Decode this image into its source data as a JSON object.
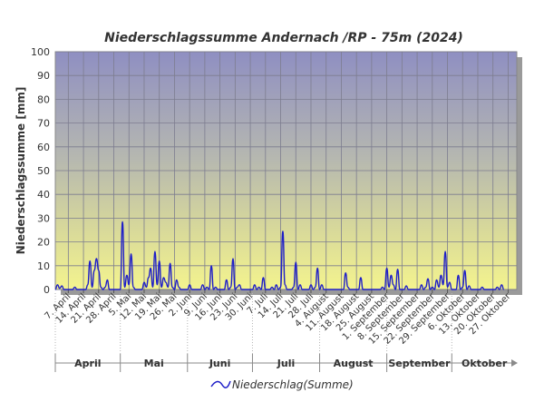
{
  "chart_data": {
    "type": "line",
    "title": "Niederschlagssumme Andernach /RP - 75m (2024)",
    "xlabel": "",
    "ylabel": "Niederschlagssumme [mm]",
    "ylim": [
      0,
      100
    ],
    "yticks": [
      0,
      10,
      20,
      30,
      40,
      50,
      60,
      70,
      80,
      90,
      100
    ],
    "xlim": [
      "2024-04-01",
      "2024-10-31"
    ],
    "xtick_labels": [
      "7. April",
      "14. April",
      "21. April",
      "28. April",
      "5. Mai",
      "12. Mai",
      "19. Mai",
      "26. Mai",
      "2. Juni",
      "9. Juni",
      "16. Juni",
      "23. Juni",
      "30. Juni",
      "7. Juli",
      "14. Juli",
      "21. Juli",
      "28. Juli",
      "4. August",
      "11. August",
      "18. August",
      "25. August",
      "1. September",
      "8. September",
      "15. September",
      "22. September",
      "29. September",
      "6. Oktober",
      "13. Oktober",
      "20. Oktober",
      "27. Oktober"
    ],
    "month_labels": [
      "April",
      "Mai",
      "Juni",
      "Juli",
      "August",
      "September",
      "Oktober"
    ],
    "grid": true,
    "legend_position": "bottom-center",
    "series": [
      {
        "name": "Niederschlag(Summe)",
        "color": "#1f1fc8",
        "points": [
          [
            "2024-04-01",
            0
          ],
          [
            "2024-04-02",
            2
          ],
          [
            "2024-04-03",
            0.5
          ],
          [
            "2024-04-04",
            1.5
          ],
          [
            "2024-04-05",
            0
          ],
          [
            "2024-04-09",
            0
          ],
          [
            "2024-04-10",
            1
          ],
          [
            "2024-04-11",
            0
          ],
          [
            "2024-04-15",
            0
          ],
          [
            "2024-04-16",
            2
          ],
          [
            "2024-04-17",
            12
          ],
          [
            "2024-04-18",
            1
          ],
          [
            "2024-04-19",
            8
          ],
          [
            "2024-04-20",
            13
          ],
          [
            "2024-04-21",
            8
          ],
          [
            "2024-04-22",
            1
          ],
          [
            "2024-04-23",
            0
          ],
          [
            "2024-04-24",
            1
          ],
          [
            "2024-04-25",
            4
          ],
          [
            "2024-04-26",
            0
          ],
          [
            "2024-05-01",
            0
          ],
          [
            "2024-05-02",
            28.5
          ],
          [
            "2024-05-03",
            1
          ],
          [
            "2024-05-04",
            6
          ],
          [
            "2024-05-05",
            2
          ],
          [
            "2024-05-06",
            15
          ],
          [
            "2024-05-07",
            1
          ],
          [
            "2024-05-08",
            0
          ],
          [
            "2024-05-11",
            0
          ],
          [
            "2024-05-12",
            3
          ],
          [
            "2024-05-13",
            1
          ],
          [
            "2024-05-14",
            5
          ],
          [
            "2024-05-15",
            9
          ],
          [
            "2024-05-16",
            1
          ],
          [
            "2024-05-17",
            16
          ],
          [
            "2024-05-18",
            2
          ],
          [
            "2024-05-19",
            12
          ],
          [
            "2024-05-20",
            1
          ],
          [
            "2024-05-21",
            5
          ],
          [
            "2024-05-22",
            3
          ],
          [
            "2024-05-23",
            1
          ],
          [
            "2024-05-24",
            11
          ],
          [
            "2024-05-25",
            1
          ],
          [
            "2024-05-26",
            0
          ],
          [
            "2024-05-27",
            4
          ],
          [
            "2024-05-28",
            1
          ],
          [
            "2024-05-29",
            0
          ],
          [
            "2024-06-01",
            0
          ],
          [
            "2024-06-02",
            2
          ],
          [
            "2024-06-03",
            0
          ],
          [
            "2024-06-07",
            0
          ],
          [
            "2024-06-08",
            2
          ],
          [
            "2024-06-09",
            0
          ],
          [
            "2024-06-10",
            1
          ],
          [
            "2024-06-11",
            0
          ],
          [
            "2024-06-12",
            10
          ],
          [
            "2024-06-13",
            0
          ],
          [
            "2024-06-14",
            1
          ],
          [
            "2024-06-15",
            0
          ],
          [
            "2024-06-18",
            0
          ],
          [
            "2024-06-19",
            4
          ],
          [
            "2024-06-20",
            0
          ],
          [
            "2024-06-21",
            1
          ],
          [
            "2024-06-22",
            13
          ],
          [
            "2024-06-23",
            0
          ],
          [
            "2024-06-24",
            1
          ],
          [
            "2024-06-25",
            2
          ],
          [
            "2024-06-26",
            0
          ],
          [
            "2024-07-01",
            0
          ],
          [
            "2024-07-02",
            2
          ],
          [
            "2024-07-03",
            0
          ],
          [
            "2024-07-04",
            1
          ],
          [
            "2024-07-05",
            0
          ],
          [
            "2024-07-06",
            5
          ],
          [
            "2024-07-07",
            0
          ],
          [
            "2024-07-09",
            0
          ],
          [
            "2024-07-10",
            1
          ],
          [
            "2024-07-11",
            0
          ],
          [
            "2024-07-12",
            2
          ],
          [
            "2024-07-13",
            0
          ],
          [
            "2024-07-14",
            1
          ],
          [
            "2024-07-15",
            24.5
          ],
          [
            "2024-07-16",
            2
          ],
          [
            "2024-07-17",
            0
          ],
          [
            "2024-07-19",
            0
          ],
          [
            "2024-07-20",
            1
          ],
          [
            "2024-07-21",
            11.5
          ],
          [
            "2024-07-22",
            0
          ],
          [
            "2024-07-23",
            2
          ],
          [
            "2024-07-24",
            0
          ],
          [
            "2024-07-27",
            0
          ],
          [
            "2024-07-28",
            2
          ],
          [
            "2024-07-29",
            0
          ],
          [
            "2024-07-30",
            1
          ],
          [
            "2024-07-31",
            9
          ],
          [
            "2024-08-01",
            0
          ],
          [
            "2024-08-02",
            2
          ],
          [
            "2024-08-03",
            0
          ],
          [
            "2024-08-12",
            0
          ],
          [
            "2024-08-13",
            7
          ],
          [
            "2024-08-14",
            1
          ],
          [
            "2024-08-15",
            0
          ],
          [
            "2024-08-19",
            0
          ],
          [
            "2024-08-20",
            5
          ],
          [
            "2024-08-21",
            0
          ],
          [
            "2024-08-29",
            0
          ],
          [
            "2024-08-30",
            1
          ],
          [
            "2024-08-31",
            0
          ],
          [
            "2024-09-01",
            9
          ],
          [
            "2024-09-02",
            1
          ],
          [
            "2024-09-03",
            6
          ],
          [
            "2024-09-04",
            2
          ],
          [
            "2024-09-05",
            0
          ],
          [
            "2024-09-06",
            8.5
          ],
          [
            "2024-09-07",
            0
          ],
          [
            "2024-09-09",
            0
          ],
          [
            "2024-09-10",
            1.5
          ],
          [
            "2024-09-11",
            0
          ],
          [
            "2024-09-16",
            0
          ],
          [
            "2024-09-17",
            2
          ],
          [
            "2024-09-18",
            0
          ],
          [
            "2024-09-19",
            1
          ],
          [
            "2024-09-20",
            4.5
          ],
          [
            "2024-09-21",
            0
          ],
          [
            "2024-09-22",
            1
          ],
          [
            "2024-09-23",
            0
          ],
          [
            "2024-09-24",
            4
          ],
          [
            "2024-09-25",
            1
          ],
          [
            "2024-09-26",
            6
          ],
          [
            "2024-09-27",
            2
          ],
          [
            "2024-09-28",
            16
          ],
          [
            "2024-09-29",
            1
          ],
          [
            "2024-09-30",
            3
          ],
          [
            "2024-10-01",
            0
          ],
          [
            "2024-10-03",
            0
          ],
          [
            "2024-10-04",
            6
          ],
          [
            "2024-10-05",
            0
          ],
          [
            "2024-10-06",
            1
          ],
          [
            "2024-10-07",
            8
          ],
          [
            "2024-10-08",
            0
          ],
          [
            "2024-10-09",
            1.5
          ],
          [
            "2024-10-10",
            0
          ],
          [
            "2024-10-14",
            0
          ],
          [
            "2024-10-15",
            1
          ],
          [
            "2024-10-16",
            0
          ],
          [
            "2024-10-21",
            0
          ],
          [
            "2024-10-22",
            1
          ],
          [
            "2024-10-23",
            0
          ],
          [
            "2024-10-24",
            2
          ],
          [
            "2024-10-25",
            0
          ]
        ]
      }
    ]
  }
}
